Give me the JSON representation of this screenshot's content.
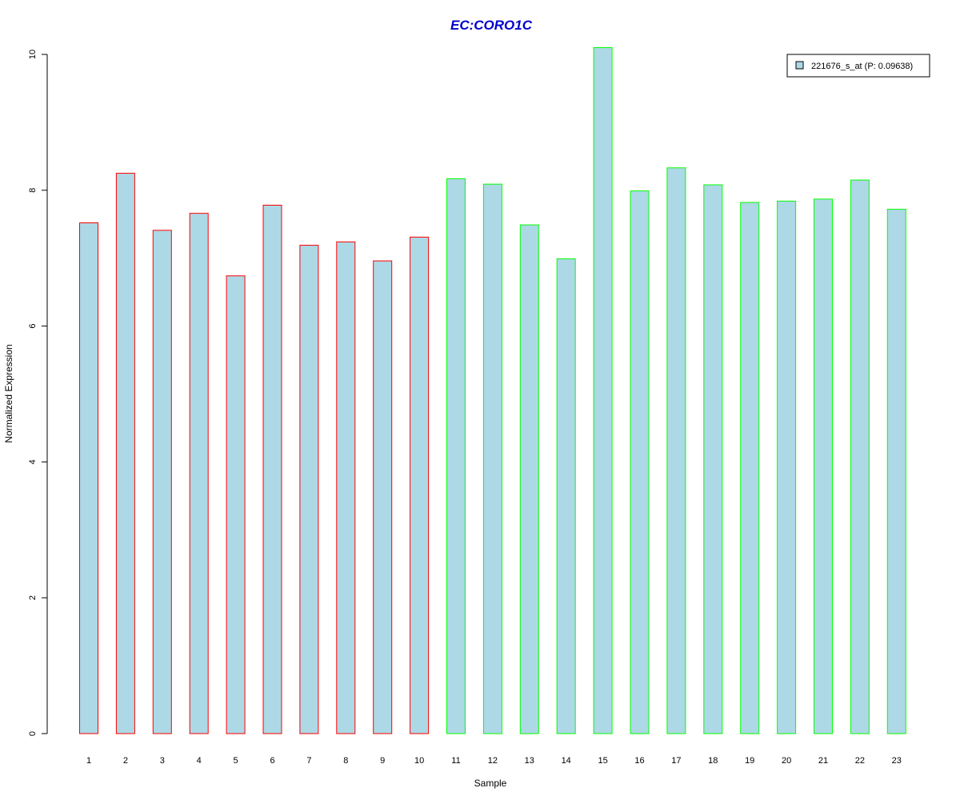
{
  "chart_data": {
    "type": "bar",
    "title": "EC:CORO1C",
    "xlabel": "Sample",
    "ylabel": "Normalized Expression",
    "categories": [
      "1",
      "2",
      "3",
      "4",
      "5",
      "6",
      "7",
      "8",
      "9",
      "10",
      "11",
      "12",
      "13",
      "14",
      "15",
      "16",
      "17",
      "18",
      "19",
      "20",
      "21",
      "22",
      "23"
    ],
    "series": [
      {
        "name": "221676_s_at (P: 0.09638)",
        "values": [
          7.52,
          8.25,
          7.41,
          7.66,
          6.74,
          7.78,
          7.19,
          7.24,
          6.96,
          7.31,
          8.17,
          8.09,
          7.49,
          6.99,
          10.1,
          7.99,
          8.33,
          8.08,
          7.82,
          7.84,
          7.87,
          8.15,
          7.72
        ]
      }
    ],
    "groups": [
      "red",
      "red",
      "red",
      "red",
      "red",
      "red",
      "red",
      "red",
      "red",
      "red",
      "green",
      "green",
      "green",
      "green",
      "green",
      "green",
      "green",
      "green",
      "green",
      "green",
      "green",
      "green",
      "green"
    ],
    "ylim": [
      0,
      10
    ],
    "yticks": [
      "0",
      "2",
      "4",
      "6",
      "8",
      "10"
    ],
    "grid": false,
    "legend_position": "top-right",
    "colors": {
      "fill": "#add8e6",
      "red": "#ff0000",
      "green": "#00ff00",
      "title": "#0000cd",
      "axis": "#000000"
    }
  }
}
